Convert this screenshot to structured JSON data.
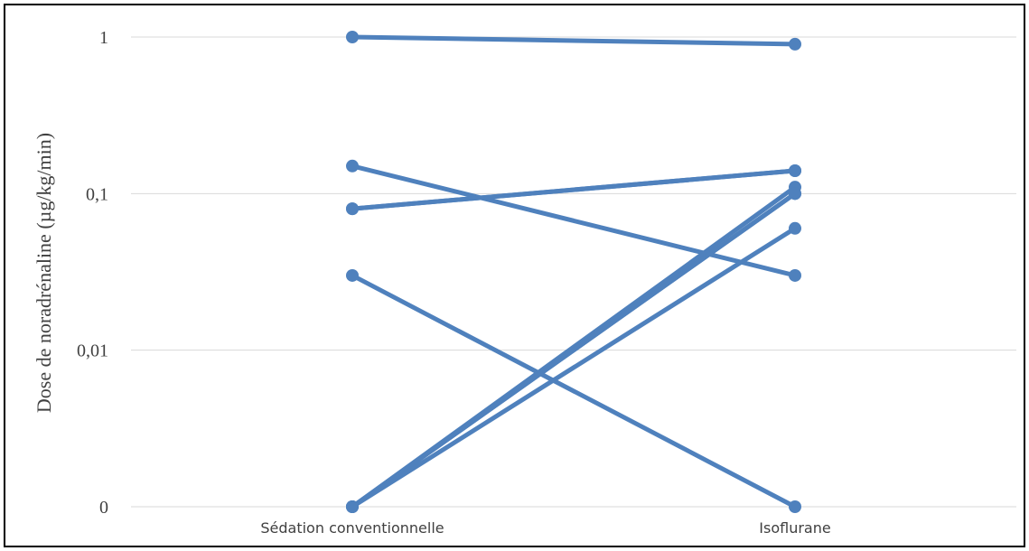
{
  "chart_data": {
    "type": "line",
    "title": "",
    "xlabel": "",
    "ylabel": "Dose de noradrénaline (µg/kg/min)",
    "y_scale": "log",
    "ylim": [
      0.001,
      1
    ],
    "y_ticks": [
      {
        "value": 1,
        "label": "1"
      },
      {
        "value": 0.1,
        "label": "0,1"
      },
      {
        "value": 0.01,
        "label": "0,01"
      },
      {
        "value": 0.001,
        "label": "0"
      }
    ],
    "categories": [
      "Sédation conventionnelle",
      "Isoflurane"
    ],
    "grid": true,
    "legend": "none",
    "color": "#4f81bd",
    "series": [
      {
        "values": [
          1,
          0.9
        ]
      },
      {
        "values": [
          0.15,
          0.03
        ]
      },
      {
        "values": [
          0.08,
          0.14
        ]
      },
      {
        "values": [
          0.08,
          0.14
        ]
      },
      {
        "values": [
          0.03,
          0.001
        ]
      },
      {
        "values": [
          0.001,
          0.11
        ]
      },
      {
        "values": [
          0.001,
          0.1
        ]
      },
      {
        "values": [
          0.001,
          0.1
        ]
      },
      {
        "values": [
          0.001,
          0.06
        ]
      }
    ]
  }
}
